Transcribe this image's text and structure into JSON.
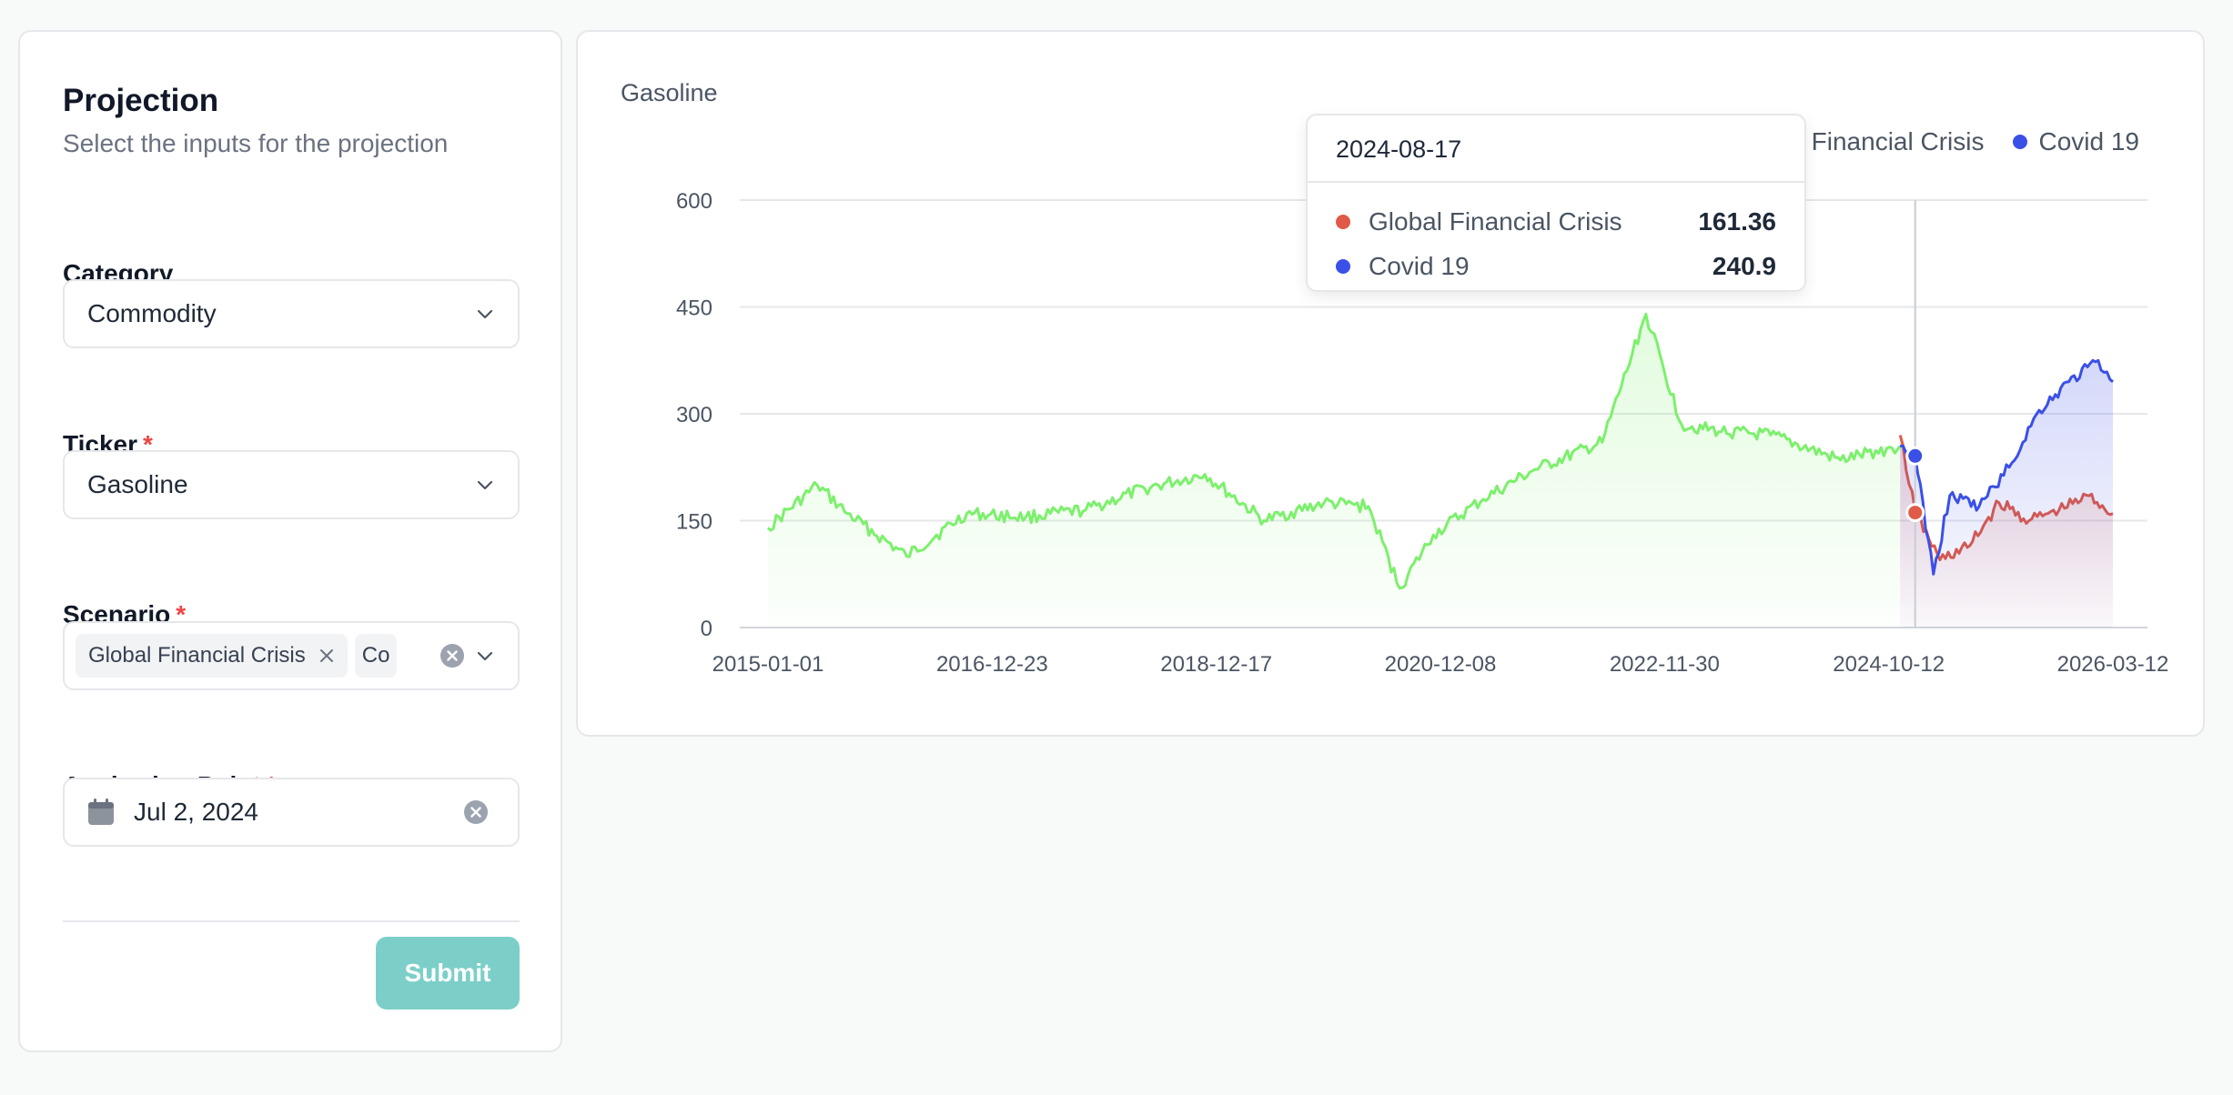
{
  "form": {
    "title": "Projection",
    "subtitle": "Select the inputs for the projection",
    "category": {
      "label": "Category",
      "value": "Commodity"
    },
    "ticker": {
      "label": "Ticker",
      "required_mark": "*",
      "value": "Gasoline"
    },
    "scenario": {
      "label": "Scenario",
      "required_mark": "*",
      "pills": [
        "Global Financial Crisis",
        "Co"
      ]
    },
    "anchoring": {
      "label": "Anchoring Point",
      "required_mark": "*",
      "value": "Jul 2, 2024"
    },
    "submit_label": "Submit",
    "submit_color": "#7ccfc8"
  },
  "icons": [
    "chevron-down-icon",
    "close-icon",
    "clear-circle-icon",
    "calendar-icon"
  ],
  "chart_data": {
    "type": "line",
    "title": "Gasoline",
    "ylim": [
      0,
      600
    ],
    "yticks": [
      "600",
      "450",
      "300",
      "150",
      "0"
    ],
    "xtick_labels": [
      "2015-01-01",
      "2016-12-23",
      "2018-12-17",
      "2020-12-08",
      "2022-11-30",
      "2024-10-12",
      "2026-03-12"
    ],
    "grid": true,
    "legend_position": "top-right",
    "series": [
      {
        "color": "#7cf06c",
        "x": [
          "2015-01-01",
          "2015-06-01",
          "2015-09-01",
          "2016-03-01",
          "2016-09-01",
          "2017-03-01",
          "2017-09-01",
          "2018-03-01",
          "2018-09-01",
          "2019-03-01",
          "2019-09-01",
          "2020-01-15",
          "2020-04-20",
          "2020-08-01",
          "2021-01-01",
          "2021-06-01",
          "2022-01-01",
          "2022-05-15",
          "2022-09-01",
          "2023-01-01",
          "2023-06-01",
          "2024-01-01",
          "2024-07-02"
        ],
        "y": [
          140,
          200,
          160,
          100,
          160,
          155,
          165,
          195,
          215,
          150,
          175,
          170,
          55,
          130,
          180,
          220,
          260,
          440,
          285,
          275,
          270,
          235,
          255
        ]
      },
      {
        "name": "Global Financial Crisis",
        "color": "#e05a47",
        "x": [
          "2024-07-02",
          "2024-08-17",
          "2024-11-01",
          "2025-02-01",
          "2025-05-01",
          "2025-08-01",
          "2025-11-01",
          "2026-02-01",
          "2026-04-15"
        ],
        "y": [
          270,
          161.36,
          95,
          115,
          175,
          150,
          165,
          185,
          160
        ]
      },
      {
        "name": "Covid 19",
        "color": "#3b50e6",
        "x": [
          "2024-07-02",
          "2024-08-17",
          "2024-10-12",
          "2024-12-01",
          "2025-03-01",
          "2025-06-01",
          "2025-09-01",
          "2025-12-01",
          "2026-03-01",
          "2026-04-15"
        ],
        "y": [
          255,
          240.9,
          75,
          185,
          170,
          225,
          305,
          345,
          375,
          345
        ]
      }
    ],
    "tooltip": {
      "date": "2024-08-17",
      "rows": [
        {
          "name": "Global Financial Crisis",
          "value": "161.36",
          "color": "#e05a47"
        },
        {
          "name": "Covid 19",
          "value": "240.9",
          "color": "#3b50e6"
        }
      ]
    }
  }
}
